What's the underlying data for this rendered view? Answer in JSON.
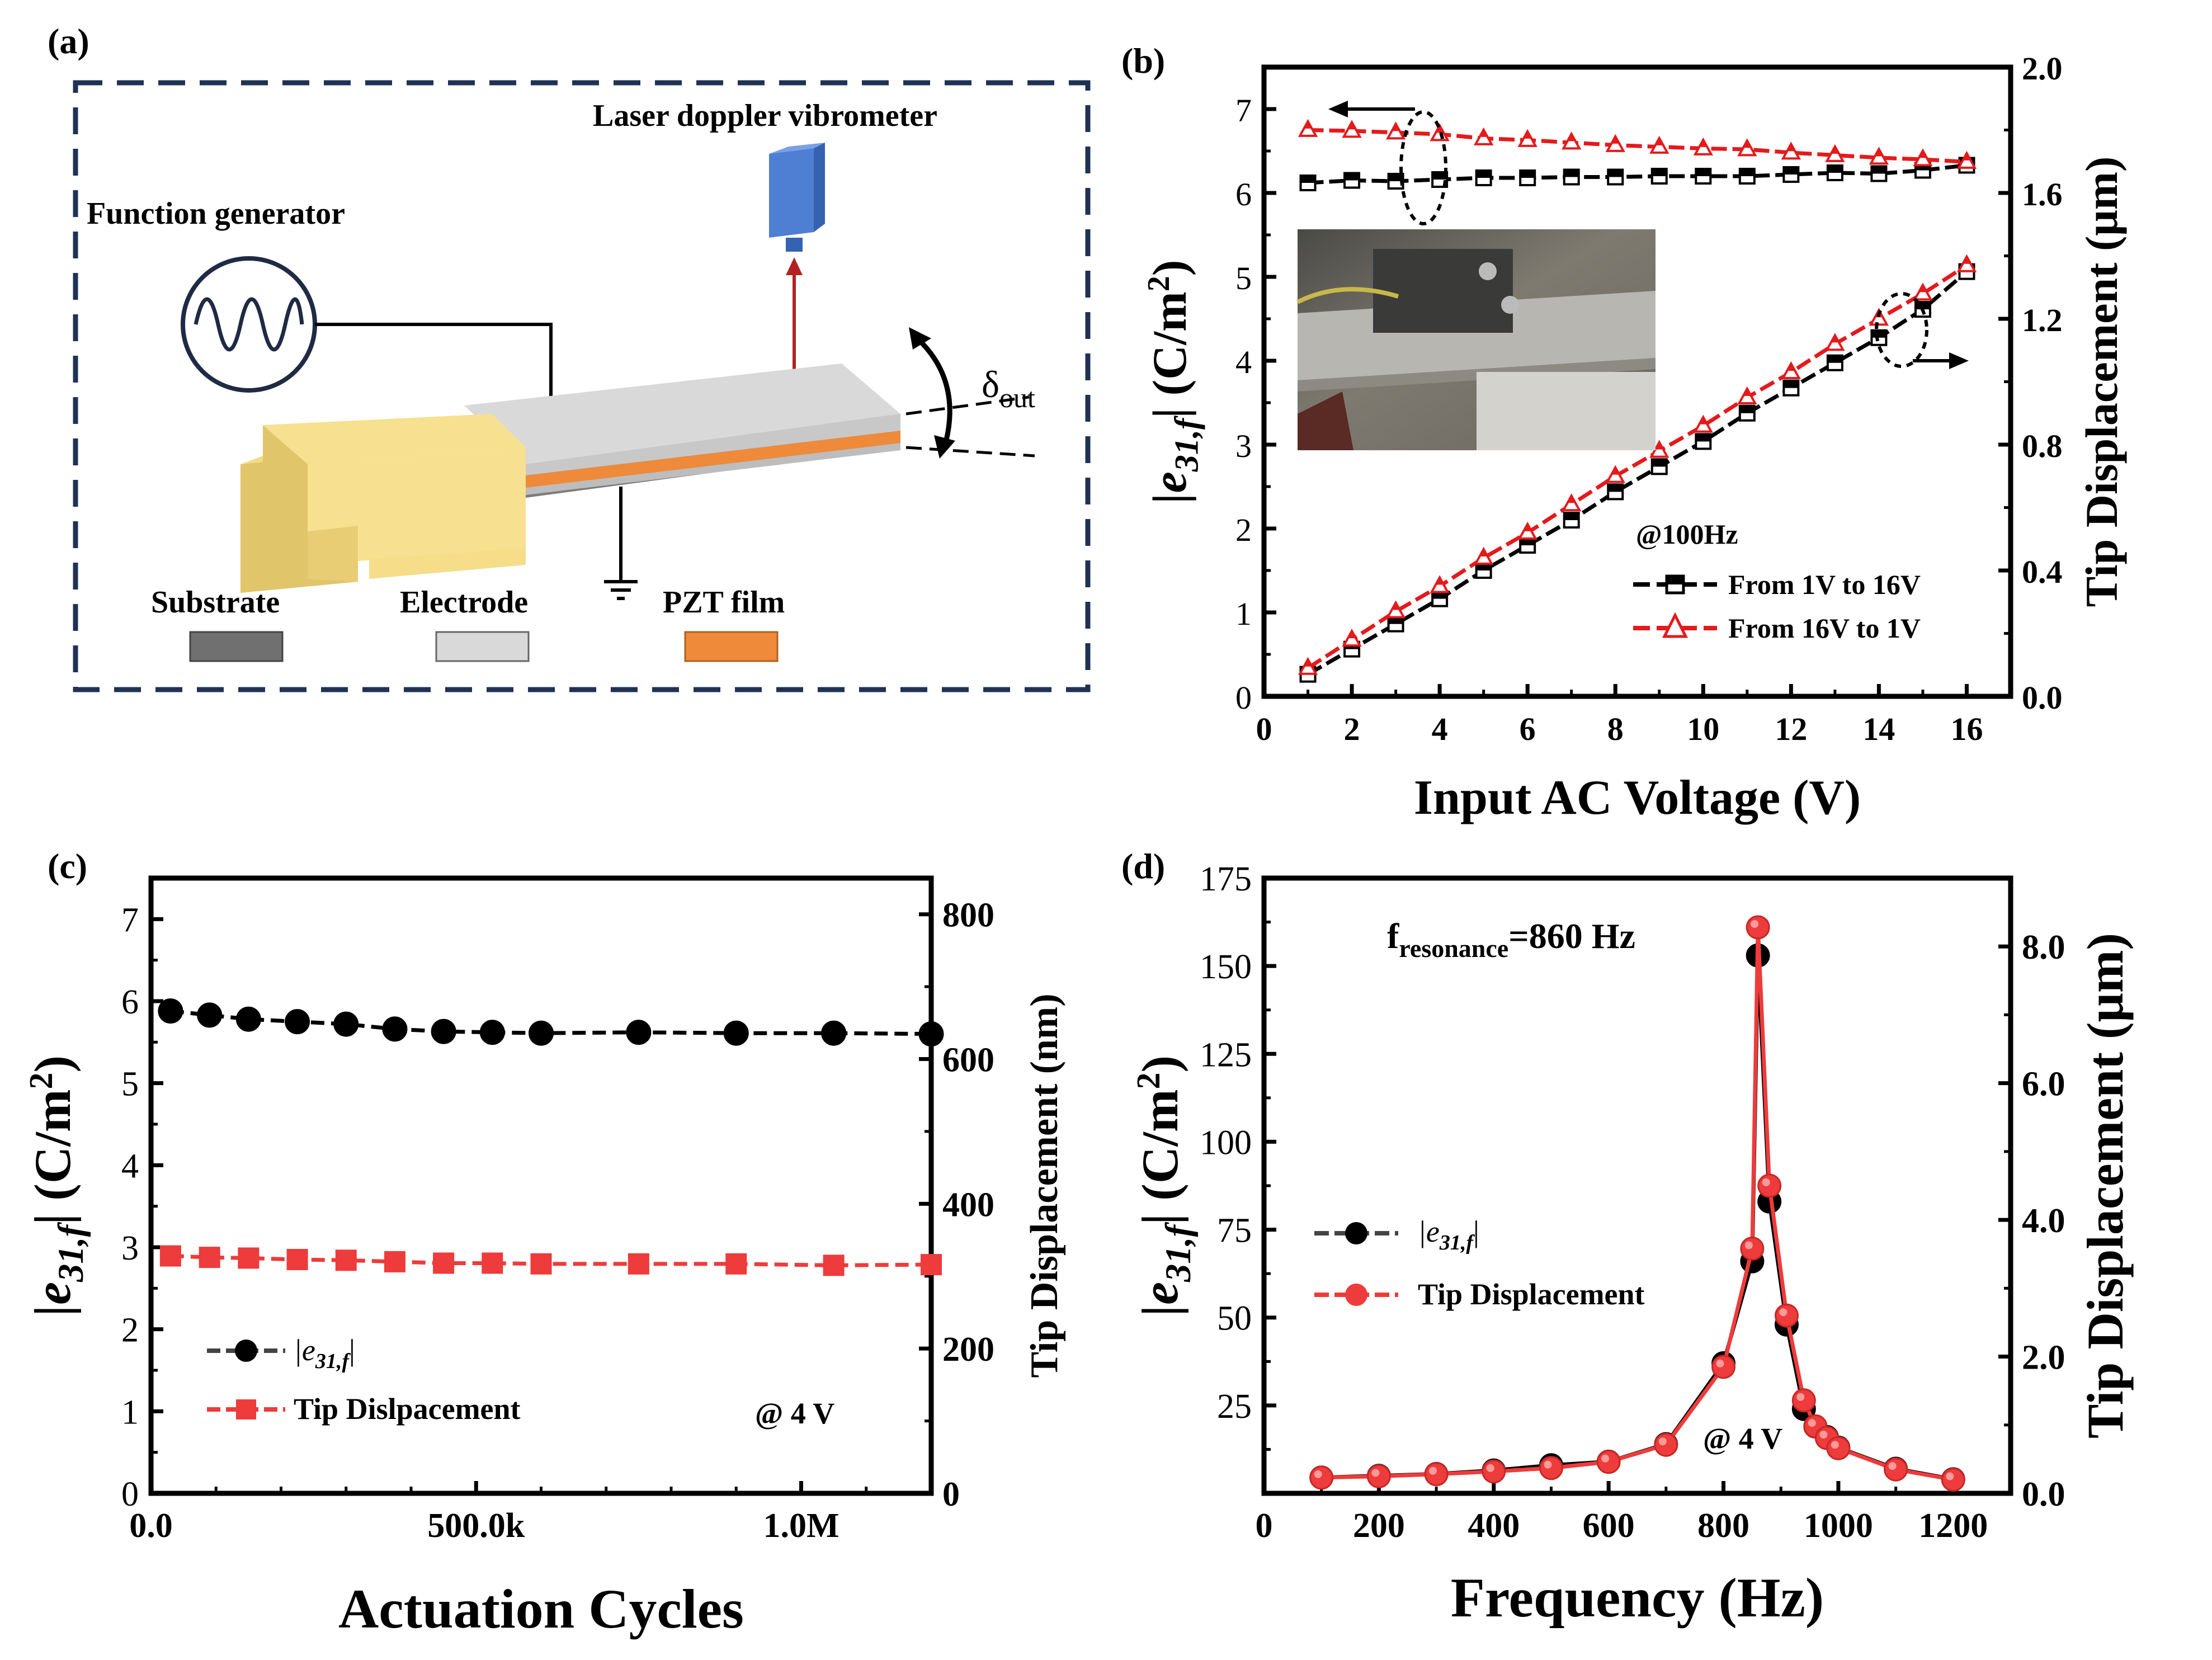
{
  "panel_labels": [
    "(a)",
    "(b)",
    "(c)",
    "(d)"
  ],
  "schematic": {
    "laser_label": "Laser doppler vibrometer",
    "fg_label": "Function generator",
    "delta_main": "δ",
    "delta_sub": "out",
    "legend": [
      {
        "label": "Substrate",
        "color": "#707070"
      },
      {
        "label": "Electrode",
        "color": "#d9d9d9"
      },
      {
        "label": "PZT film",
        "color": "#ee8a3a"
      }
    ],
    "colors": {
      "clamp": "#f7e08f",
      "clamp_dark": "#e0c56a",
      "laser": "#4f7fd3",
      "arrow": "#b22222",
      "frame": "#1f3255"
    }
  },
  "chart_data": [
    {
      "type": "line",
      "panel": "(b)",
      "xlabel": "Input AC Voltage (V)",
      "ylabel_main": "|e",
      "ylabel_sub": "31,f",
      "ylabel_unit": "| (C/m",
      "ylabel_sup": "2",
      "ylabel_close": ")",
      "y2label": "Tip Displacement (μm)",
      "xlim": [
        0,
        17
      ],
      "ylim": [
        0,
        7.5
      ],
      "y2lim": [
        0,
        2.0
      ],
      "xticks": [
        "0",
        "2",
        "4",
        "6",
        "8",
        "10",
        "12",
        "14",
        "16"
      ],
      "yticks": [
        "0",
        "1",
        "2",
        "3",
        "4",
        "5",
        "6",
        "7"
      ],
      "y2ticks": [
        "0.0",
        "0.4",
        "0.8",
        "1.2",
        "1.6",
        "2.0"
      ],
      "annotation": "@100Hz",
      "legend": [
        "From 1V to 16V",
        "From 16V to 1V"
      ],
      "x": [
        1,
        2,
        3,
        4,
        5,
        6,
        7,
        8,
        9,
        10,
        11,
        12,
        13,
        14,
        15,
        16
      ],
      "series": [
        {
          "name": "From 1V to 16V",
          "axis": "left",
          "color": "#000000",
          "marker": "square",
          "values": [
            6.12,
            6.15,
            6.14,
            6.16,
            6.18,
            6.18,
            6.19,
            6.19,
            6.2,
            6.2,
            6.2,
            6.22,
            6.24,
            6.23,
            6.27,
            6.33
          ]
        },
        {
          "name": "From 16V to 1V",
          "axis": "left",
          "color": "#e41a1c",
          "marker": "triangle",
          "values": [
            6.75,
            6.74,
            6.72,
            6.7,
            6.65,
            6.63,
            6.6,
            6.57,
            6.55,
            6.53,
            6.52,
            6.48,
            6.45,
            6.42,
            6.4,
            6.37
          ]
        },
        {
          "name": "From 1V to 16V",
          "axis": "right",
          "color": "#000000",
          "marker": "square",
          "values": [
            0.07,
            0.15,
            0.23,
            0.31,
            0.4,
            0.48,
            0.56,
            0.65,
            0.73,
            0.81,
            0.9,
            0.98,
            1.06,
            1.14,
            1.23,
            1.35
          ]
        },
        {
          "name": "From 16V to 1V",
          "axis": "right",
          "color": "#e41a1c",
          "marker": "triangle",
          "values": [
            0.09,
            0.18,
            0.27,
            0.35,
            0.44,
            0.52,
            0.61,
            0.7,
            0.78,
            0.86,
            0.95,
            1.03,
            1.12,
            1.2,
            1.28,
            1.37
          ]
        }
      ]
    },
    {
      "type": "line",
      "panel": "(c)",
      "xlabel": "Actuation Cycles",
      "ylabel_main": "|e",
      "ylabel_sub": "31,f",
      "ylabel_unit": "| (C/m",
      "ylabel_sup": "2",
      "ylabel_close": ")",
      "y2label": "Tip Displacement (nm)",
      "xlim": [
        0,
        1200000
      ],
      "ylim": [
        0,
        7.5
      ],
      "y2lim": [
        0,
        850
      ],
      "xticks": [
        {
          "v": 0,
          "label": "0.0"
        },
        {
          "v": 500000,
          "label": "500.0k"
        },
        {
          "v": 1000000,
          "label": "1.0M"
        }
      ],
      "yticks": [
        "0",
        "1",
        "2",
        "3",
        "4",
        "5",
        "6",
        "7"
      ],
      "y2ticks": [
        "0",
        "200",
        "400",
        "600",
        "800"
      ],
      "annotation": "@ 4 V",
      "legend_main": "|e",
      "legend_sub": "31,f",
      "legend_close": "|",
      "legend2": "Tip Dislpacement",
      "series": [
        {
          "name": "|e31,f|",
          "axis": "left",
          "color": "#000000",
          "marker": "circle",
          "x": [
            30000,
            90000,
            150000,
            225000,
            300000,
            375000,
            450000,
            525000,
            600000,
            750000,
            900000,
            1050000,
            1200000
          ],
          "values": [
            5.88,
            5.83,
            5.78,
            5.75,
            5.72,
            5.66,
            5.63,
            5.62,
            5.61,
            5.62,
            5.61,
            5.61,
            5.6
          ]
        },
        {
          "name": "Tip Dislpacement",
          "axis": "right",
          "color": "#ee3b3b",
          "marker": "square",
          "x": [
            30000,
            90000,
            150000,
            225000,
            300000,
            375000,
            450000,
            525000,
            600000,
            750000,
            900000,
            1050000,
            1200000
          ],
          "values": [
            328,
            326,
            325,
            323,
            322,
            320,
            318,
            318,
            317,
            317,
            317,
            315,
            316
          ]
        }
      ]
    },
    {
      "type": "line",
      "panel": "(d)",
      "xlabel": "Frequency (Hz)",
      "ylabel_main": "|e",
      "ylabel_sub": "31,f",
      "ylabel_unit": "| (C/m",
      "ylabel_sup": "2",
      "ylabel_close": ")",
      "y2label": "Tip Displacement (μm)",
      "xlim": [
        0,
        1300
      ],
      "ylim": [
        0,
        175
      ],
      "y2lim": [
        0,
        9.0
      ],
      "xticks": [
        "0",
        "200",
        "400",
        "600",
        "800",
        "1000",
        "1200"
      ],
      "yticks": [
        "25",
        "50",
        "75",
        "100",
        "125",
        "150",
        "175"
      ],
      "y2ticks": [
        "0.0",
        "2.0",
        "4.0",
        "6.0",
        "8.0"
      ],
      "annotation": "@ 4 V",
      "resonance_main": "f",
      "resonance_sub": "resonance",
      "resonance_value": "=860 Hz",
      "legend_main": "|e",
      "legend_sub": "31,f",
      "legend_close": "|",
      "legend2": "Tip Displacement",
      "series": [
        {
          "name": "|e31,f|",
          "axis": "left",
          "color": "#000000",
          "marker": "circle",
          "x": [
            100,
            200,
            300,
            400,
            500,
            600,
            700,
            800,
            850,
            860,
            880,
            910,
            940,
            960,
            980,
            1000,
            1100,
            1200
          ],
          "values": [
            4.5,
            5,
            5.5,
            6.5,
            8,
            9,
            14,
            37,
            66,
            153,
            83,
            48,
            24,
            19,
            16,
            13,
            7,
            4
          ]
        },
        {
          "name": "Tip Displacement",
          "axis": "right",
          "color": "#ee3b3b",
          "marker": "circle",
          "x": [
            100,
            200,
            300,
            400,
            500,
            600,
            700,
            800,
            850,
            860,
            880,
            910,
            940,
            960,
            980,
            1000,
            1100,
            1200
          ],
          "values": [
            0.23,
            0.25,
            0.28,
            0.32,
            0.37,
            0.46,
            0.71,
            1.85,
            3.58,
            8.28,
            4.5,
            2.6,
            1.36,
            0.98,
            0.81,
            0.66,
            0.35,
            0.2
          ]
        }
      ]
    }
  ]
}
